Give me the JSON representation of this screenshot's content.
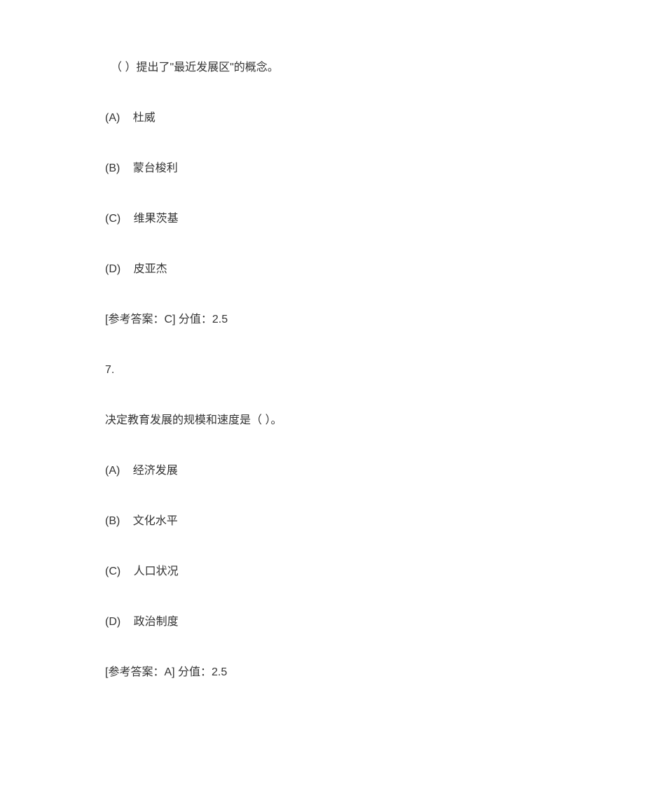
{
  "q6": {
    "stem": "（ ）提出了\"最近发展区\"的概念。",
    "options": {
      "a": {
        "label": "(A)",
        "text": "杜威"
      },
      "b": {
        "label": "(B)",
        "text": "蒙台梭利"
      },
      "c": {
        "label": "(C)",
        "text": "维果茨基"
      },
      "d": {
        "label": "(D)",
        "text": "皮亚杰"
      }
    },
    "answer": "[参考答案：C]   分值：2.5"
  },
  "q7": {
    "number": "7.",
    "stem": "决定教育发展的规模和速度是（ ）。",
    "options": {
      "a": {
        "label": "(A)",
        "text": "经济发展"
      },
      "b": {
        "label": "(B)",
        "text": "文化水平"
      },
      "c": {
        "label": "(C)",
        "text": "人口状况"
      },
      "d": {
        "label": "(D)",
        "text": "政治制度"
      }
    },
    "answer": "[参考答案：A]   分值：2.5"
  }
}
